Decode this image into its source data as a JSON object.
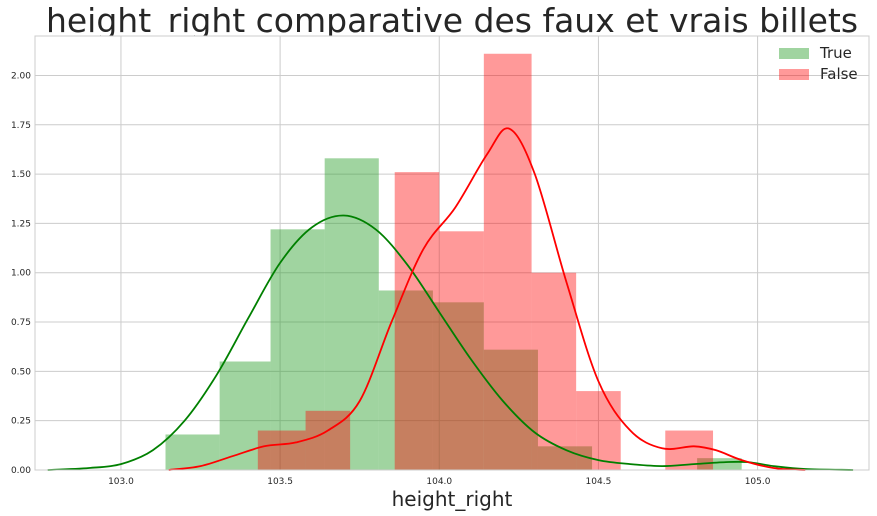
{
  "chart_data": {
    "type": "histogram",
    "title": "height_right comparative des faux et vrais billets",
    "xlabel": "height_right",
    "ylabel": "",
    "xlim": [
      102.73,
      105.35
    ],
    "ylim": [
      0,
      2.2
    ],
    "xticks": [
      "103.0",
      "103.5",
      "104.0",
      "104.5",
      "105.0"
    ],
    "yticks": [
      "0.00",
      "0.25",
      "0.50",
      "0.75",
      "1.00",
      "1.25",
      "1.50",
      "1.75",
      "2.00"
    ],
    "grid": true,
    "legend_position": "top-right",
    "series": [
      {
        "name": "True",
        "color": "#2ca02c",
        "bar_opacity": 0.45,
        "kde_color": "#008000",
        "bins": [
          {
            "x0": 103.14,
            "x1": 103.31,
            "density": 0.18
          },
          {
            "x0": 103.31,
            "x1": 103.47,
            "density": 0.55
          },
          {
            "x0": 103.47,
            "x1": 103.64,
            "density": 1.22
          },
          {
            "x0": 103.64,
            "x1": 103.81,
            "density": 1.58
          },
          {
            "x0": 103.81,
            "x1": 103.98,
            "density": 0.91
          },
          {
            "x0": 103.98,
            "x1": 104.14,
            "density": 0.85
          },
          {
            "x0": 104.14,
            "x1": 104.31,
            "density": 0.61
          },
          {
            "x0": 104.31,
            "x1": 104.48,
            "density": 0.12
          },
          {
            "x0": 104.48,
            "x1": 104.81,
            "density": 0.0
          },
          {
            "x0": 104.81,
            "x1": 104.95,
            "density": 0.06
          }
        ],
        "kde": [
          [
            102.77,
            0.0
          ],
          [
            102.9,
            0.01
          ],
          [
            103.0,
            0.03
          ],
          [
            103.1,
            0.1
          ],
          [
            103.2,
            0.25
          ],
          [
            103.3,
            0.48
          ],
          [
            103.4,
            0.77
          ],
          [
            103.5,
            1.05
          ],
          [
            103.6,
            1.23
          ],
          [
            103.7,
            1.29
          ],
          [
            103.8,
            1.22
          ],
          [
            103.9,
            1.04
          ],
          [
            104.0,
            0.8
          ],
          [
            104.1,
            0.56
          ],
          [
            104.2,
            0.35
          ],
          [
            104.3,
            0.19
          ],
          [
            104.4,
            0.1
          ],
          [
            104.5,
            0.05
          ],
          [
            104.6,
            0.03
          ],
          [
            104.7,
            0.02
          ],
          [
            104.8,
            0.03
          ],
          [
            104.9,
            0.04
          ],
          [
            104.97,
            0.04
          ],
          [
            105.05,
            0.02
          ],
          [
            105.15,
            0.005
          ],
          [
            105.3,
            0.0
          ]
        ]
      },
      {
        "name": "False",
        "color": "#ff0000",
        "bar_opacity": 0.4,
        "kde_color": "#ff0000",
        "bins": [
          {
            "x0": 103.43,
            "x1": 103.58,
            "density": 0.2
          },
          {
            "x0": 103.58,
            "x1": 103.72,
            "density": 0.3
          },
          {
            "x0": 103.72,
            "x1": 103.86,
            "density": 0.0
          },
          {
            "x0": 103.86,
            "x1": 104.0,
            "density": 1.51
          },
          {
            "x0": 104.0,
            "x1": 104.14,
            "density": 1.21
          },
          {
            "x0": 104.14,
            "x1": 104.29,
            "density": 2.11
          },
          {
            "x0": 104.29,
            "x1": 104.43,
            "density": 1.0
          },
          {
            "x0": 104.43,
            "x1": 104.57,
            "density": 0.4
          },
          {
            "x0": 104.57,
            "x1": 104.71,
            "density": 0.0
          },
          {
            "x0": 104.71,
            "x1": 104.86,
            "density": 0.2
          }
        ],
        "kde": [
          [
            103.15,
            0.0
          ],
          [
            103.25,
            0.02
          ],
          [
            103.35,
            0.07
          ],
          [
            103.45,
            0.12
          ],
          [
            103.55,
            0.14
          ],
          [
            103.65,
            0.2
          ],
          [
            103.75,
            0.35
          ],
          [
            103.85,
            0.75
          ],
          [
            103.95,
            1.12
          ],
          [
            104.05,
            1.33
          ],
          [
            104.15,
            1.6
          ],
          [
            104.22,
            1.73
          ],
          [
            104.3,
            1.5
          ],
          [
            104.4,
            0.95
          ],
          [
            104.5,
            0.45
          ],
          [
            104.6,
            0.2
          ],
          [
            104.7,
            0.11
          ],
          [
            104.8,
            0.12
          ],
          [
            104.87,
            0.1
          ],
          [
            104.95,
            0.05
          ],
          [
            105.05,
            0.01
          ],
          [
            105.15,
            0.0
          ]
        ]
      }
    ]
  }
}
